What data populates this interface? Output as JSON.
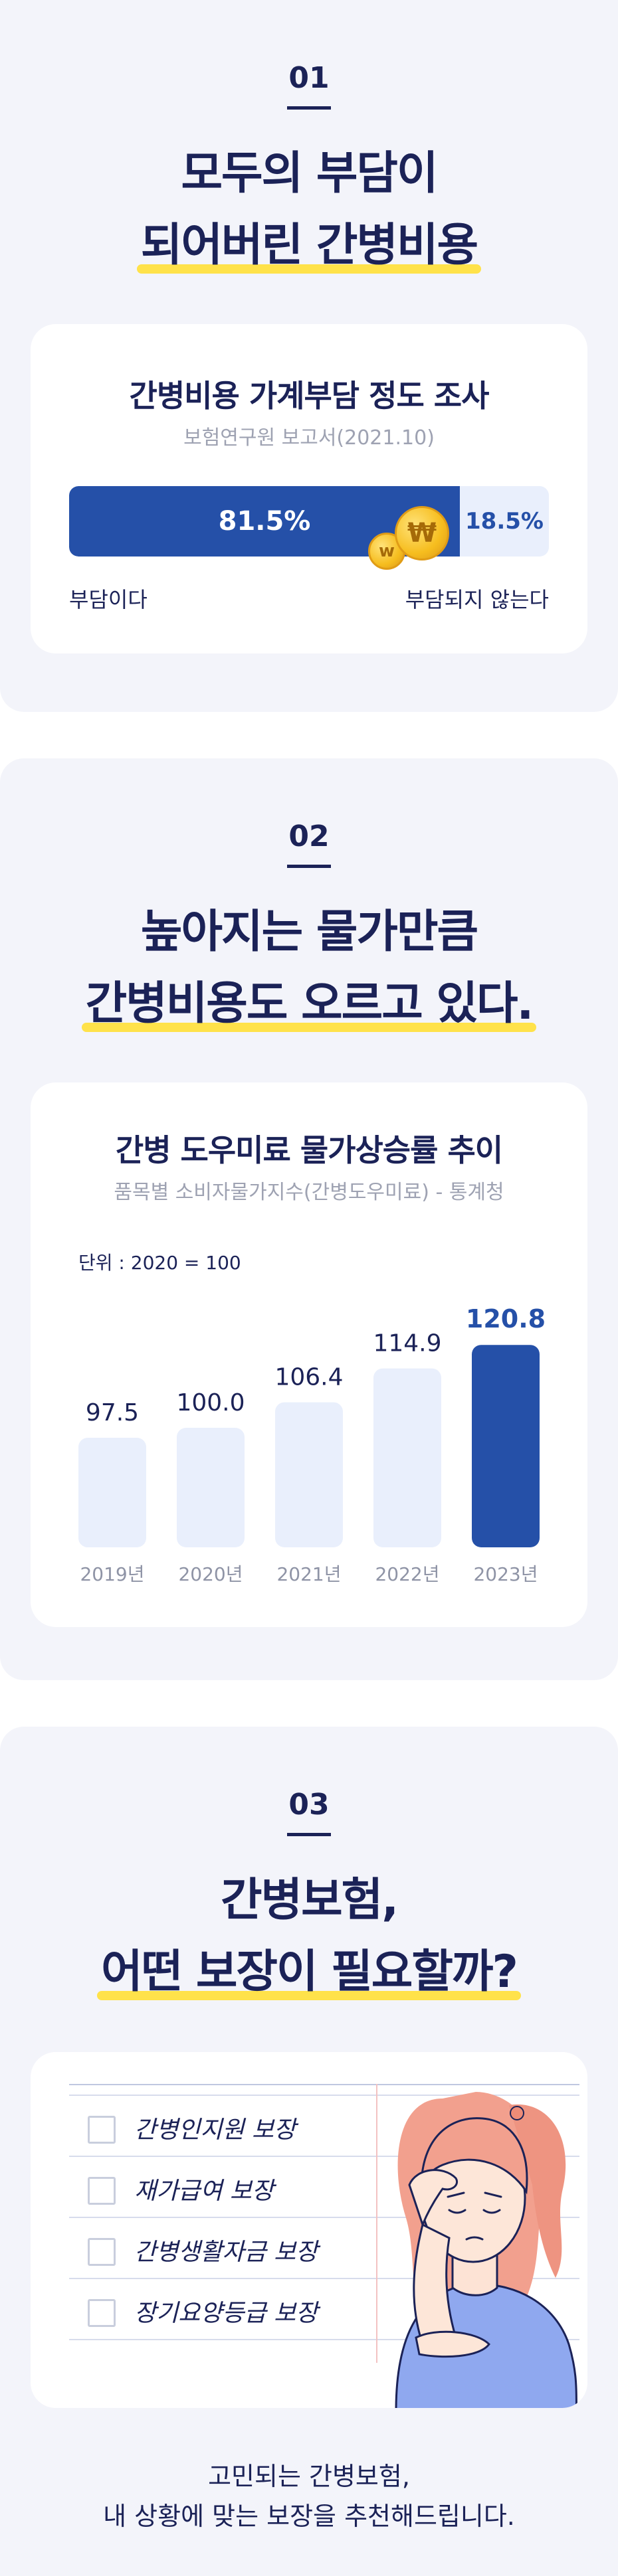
{
  "section1": {
    "number": "01",
    "headline_line1": "모두의 부담이",
    "headline_line2": "되어버린 간병비용",
    "card": {
      "title": "간병비용 가계부담 정도 조사",
      "source": "보험연구원 보고서(2021.10)",
      "burden_label": "부담이다",
      "no_burden_label": "부담되지 않는다",
      "burden_value": "81.5%",
      "no_burden_value": "18.5%",
      "burden_fraction": 0.815,
      "coin_symbol": "₩",
      "coin_small_symbol": "w"
    }
  },
  "section2": {
    "number": "02",
    "headline_line1": "높아지는 물가만큼",
    "headline_line2": "간병비용도 오르고 있다.",
    "card": {
      "title": "간병 도우미료 물가상승률 추이",
      "source": "품목별 소비자물가지수(간병도우미료) - 통계청",
      "unit": "단위 : 2020 = 100"
    }
  },
  "chart_data": {
    "type": "bar",
    "title": "간병 도우미료 물가상승률 추이",
    "subtitle": "품목별 소비자물가지수(간병도우미료) - 통계청",
    "unit": "단위 : 2020 = 100",
    "categories": [
      "2019년",
      "2020년",
      "2021년",
      "2022년",
      "2023년"
    ],
    "values": [
      97.5,
      100.0,
      106.4,
      114.9,
      120.8
    ],
    "value_labels": [
      "97.5",
      "100.0",
      "106.4",
      "114.9",
      "120.8"
    ],
    "highlight_index": 4,
    "colors": {
      "normal": "#e9effc",
      "highlight": "#2550a8"
    }
  },
  "section3": {
    "number": "03",
    "headline_line1": "간병보험,",
    "headline_line2": "어떤 보장이 필요할까?",
    "checklist": [
      "간병인지원 보장",
      "재가급여 보장",
      "간병생활자금 보장",
      "장기요양등급 보장"
    ],
    "footer_line1": "고민되는 간병보험,",
    "footer_line2": "내 상황에 맞는 보장을 추천해드립니다."
  },
  "colors": {
    "navy": "#1b2257",
    "accent_blue": "#2550a8",
    "light_blue": "#e9effc",
    "highlight_yellow": "#ffe24a",
    "section_bg": "#f3f4fa"
  }
}
